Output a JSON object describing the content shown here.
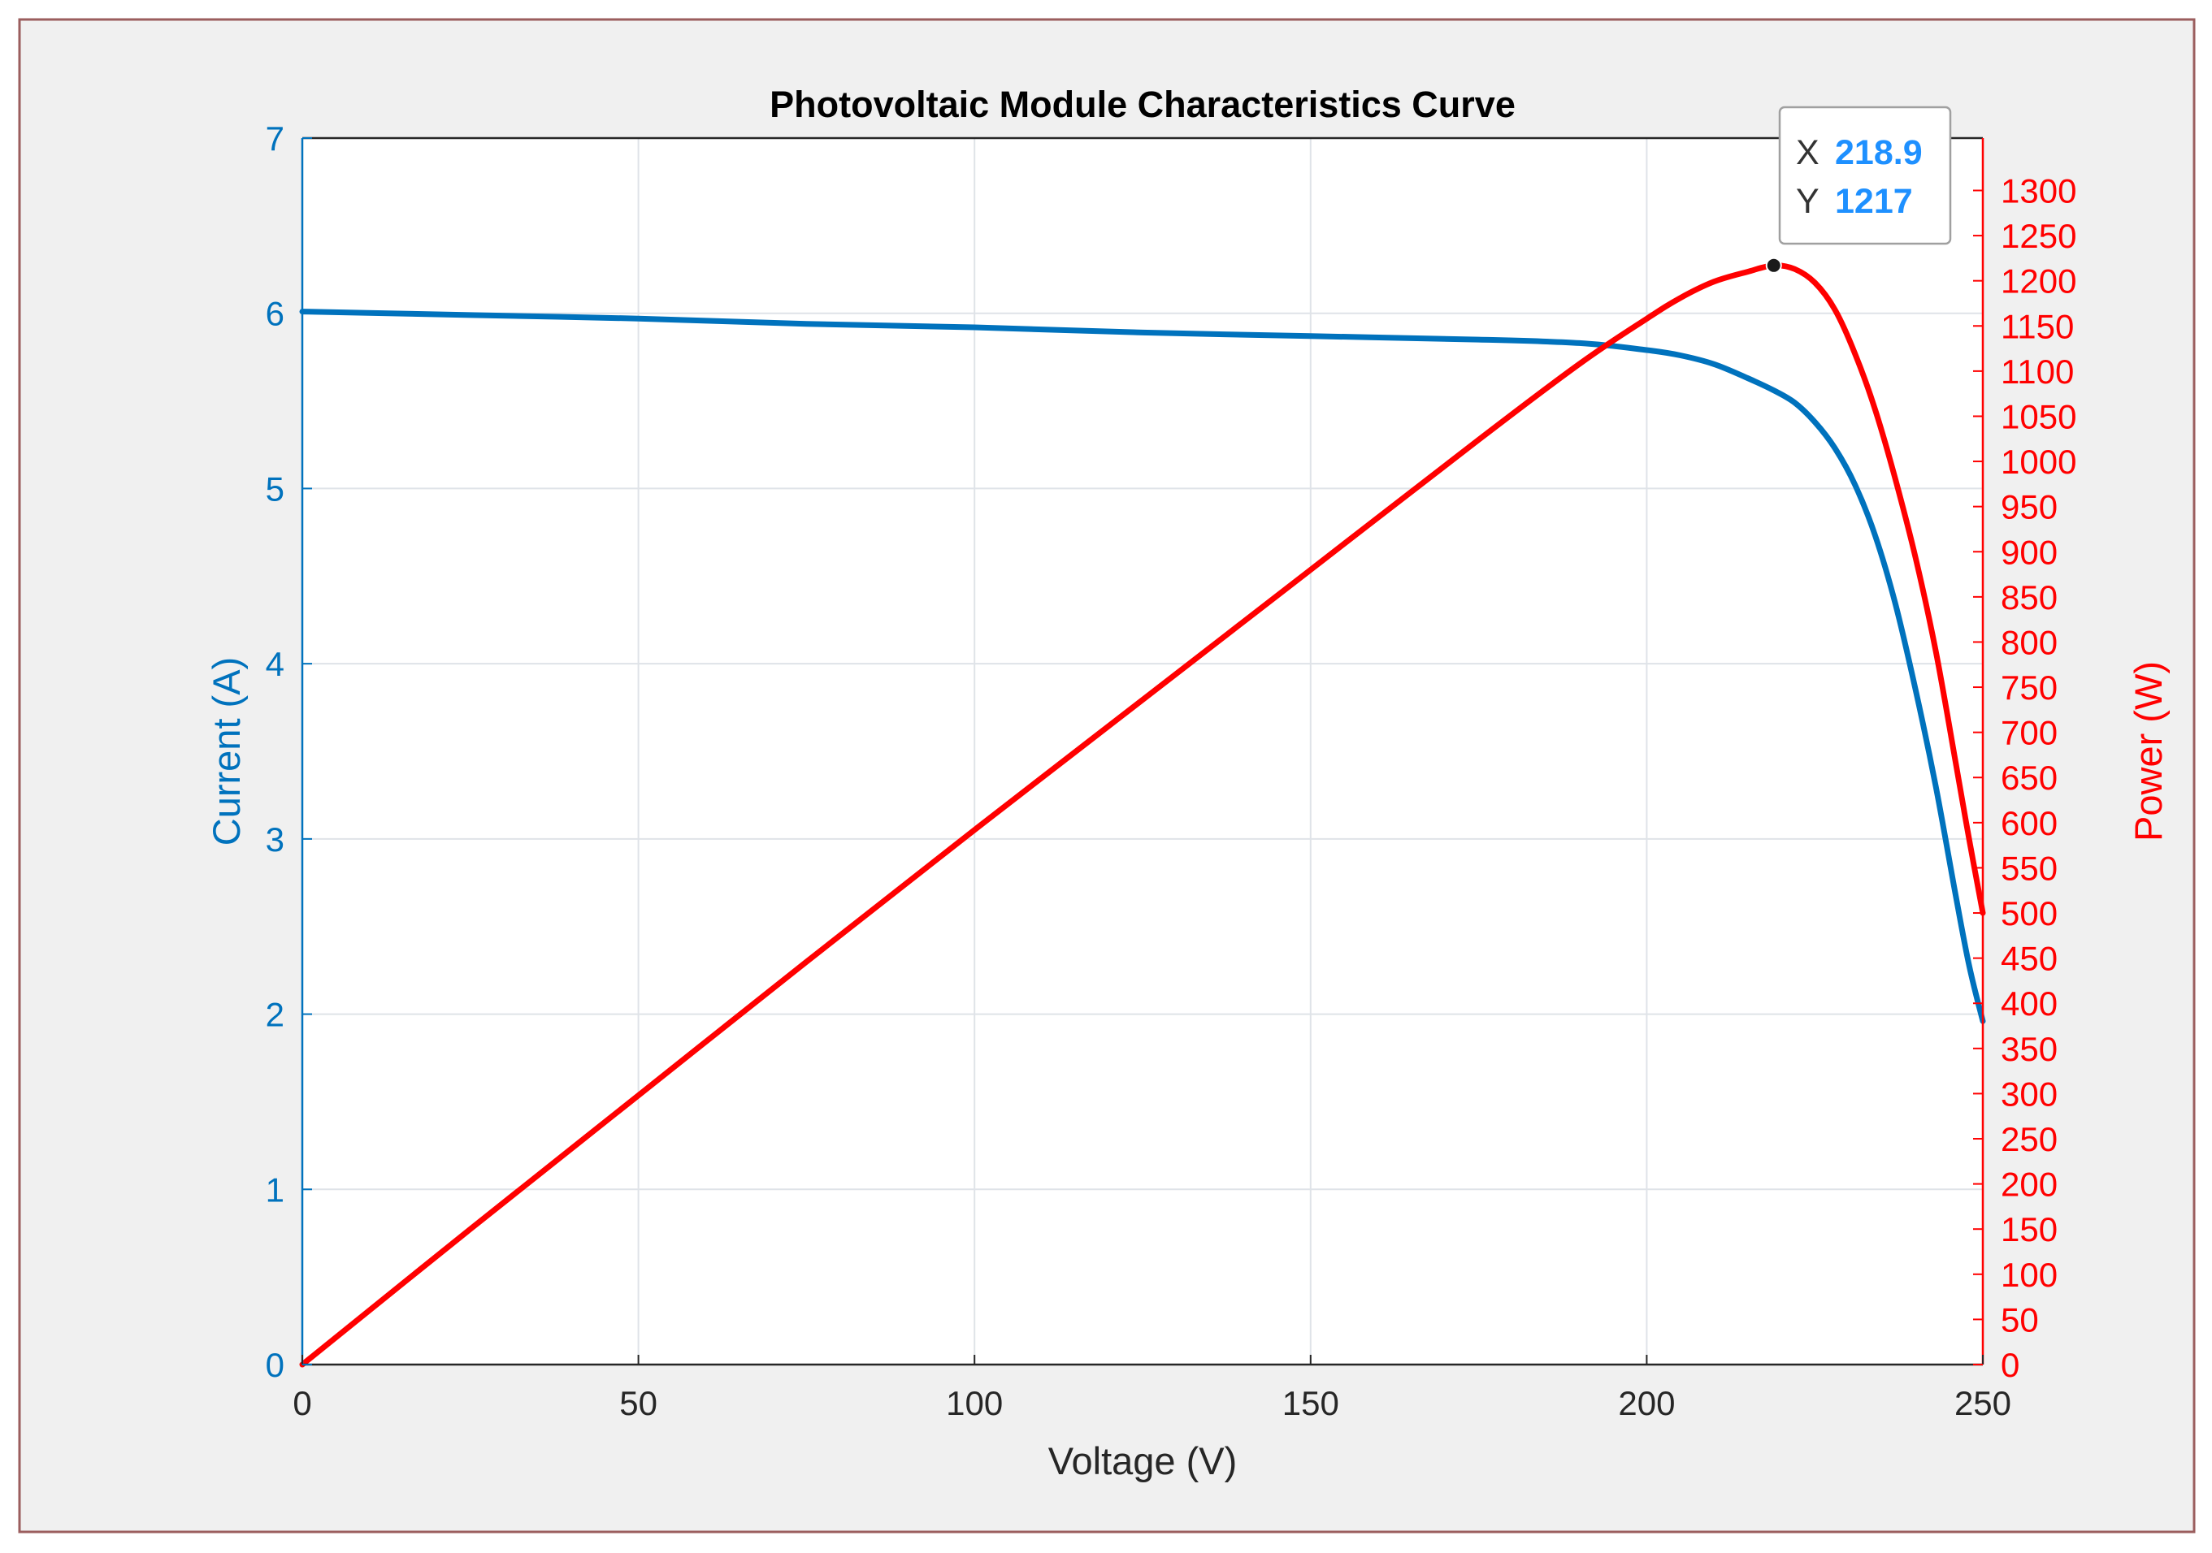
{
  "chart_data": {
    "type": "line",
    "title": "Photovoltaic Module Characteristics Curve",
    "xlabel": "Voltage (V)",
    "ylabel_left": "Current (A)",
    "ylabel_right": "Power (W)",
    "xlim": [
      0,
      250
    ],
    "ylim_left": [
      0,
      7
    ],
    "ylim_right": [
      0,
      1358
    ],
    "xticks": [
      "0",
      "50",
      "100",
      "150",
      "200",
      "250"
    ],
    "yticks_left": [
      "0",
      "1",
      "2",
      "3",
      "4",
      "5",
      "6",
      "7"
    ],
    "yticks_right": [
      "0",
      "50",
      "100",
      "150",
      "200",
      "250",
      "300",
      "350",
      "400",
      "450",
      "500",
      "550",
      "600",
      "650",
      "700",
      "750",
      "800",
      "850",
      "900",
      "950",
      "1000",
      "1050",
      "1100",
      "1150",
      "1200",
      "1250",
      "1300"
    ],
    "grid": true,
    "series": [
      {
        "name": "Current (A)",
        "axis": "left",
        "color": "#0072BD",
        "x": [
          0,
          25,
          50,
          75,
          100,
          125,
          150,
          175,
          190,
          200,
          205,
          210,
          215,
          218.9,
          222,
          225,
          228,
          231,
          234,
          237,
          240,
          243,
          246,
          248,
          250
        ],
        "y": [
          6.01,
          5.99,
          5.97,
          5.94,
          5.92,
          5.89,
          5.87,
          5.85,
          5.83,
          5.79,
          5.76,
          5.71,
          5.63,
          5.56,
          5.49,
          5.38,
          5.23,
          5.02,
          4.73,
          4.34,
          3.85,
          3.3,
          2.67,
          2.27,
          1.96
        ]
      },
      {
        "name": "Power (W)",
        "axis": "right",
        "color": "#FF0000",
        "x": [
          0,
          25,
          50,
          75,
          100,
          125,
          150,
          175,
          190,
          200,
          205,
          210,
          215,
          218.9,
          222,
          225,
          228,
          231,
          234,
          237,
          240,
          243,
          246,
          248,
          250
        ],
        "y": [
          0,
          150,
          298,
          446,
          592,
          736,
          880,
          1024,
          1108,
          1158,
          1181,
          1199,
          1210,
          1217,
          1213,
          1198,
          1168,
          1119,
          1057,
          980,
          893,
          790,
          665,
          580,
          500
        ]
      }
    ],
    "datatip": {
      "x_label": "X",
      "x_value": "218.9",
      "y_label": "Y",
      "y_value": "1217",
      "target_x": 218.9,
      "target_y": 1217
    }
  },
  "colors": {
    "left_axis": "#0072BD",
    "right_axis": "#FF0000",
    "datatip_value": "#1E90FF",
    "window_border": "#9B5E5E"
  }
}
